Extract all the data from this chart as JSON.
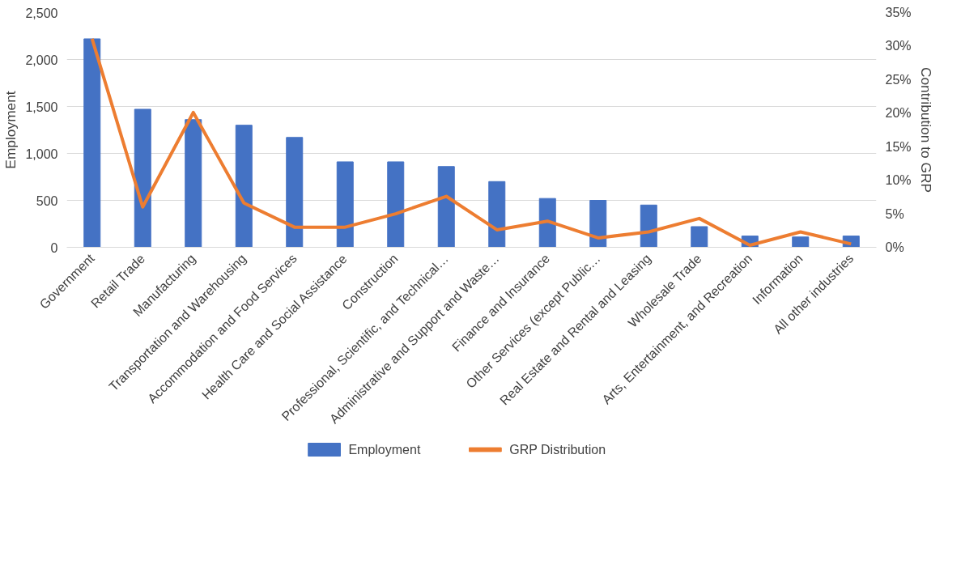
{
  "chart_data": {
    "type": "bar",
    "ylabel": "Employment",
    "y2label": "Contribution to GRP",
    "categories": [
      "Government",
      "Retail Trade",
      "Manufacturing",
      "Transportation and Warehousing",
      "Accommodation and Food Services",
      "Health Care and Social Assistance",
      "Construction",
      "Professional, Scientific, and Technical…",
      "Administrative and Support and Waste…",
      "Finance and Insurance",
      "Other Services (except Public…",
      "Real Estate and Rental and Leasing",
      "Wholesale Trade",
      "Arts, Entertainment, and Recreation",
      "Information",
      "All other industries"
    ],
    "series": [
      {
        "name": "Employment",
        "color": "#4472c4",
        "values": [
          2220,
          1470,
          1360,
          1300,
          1170,
          910,
          910,
          860,
          700,
          520,
          500,
          450,
          220,
          120,
          110,
          120
        ]
      },
      {
        "name": "GRP Distribution",
        "type": "line",
        "axis": "y2",
        "color": "#ed7d31",
        "values": [
          31.1,
          6.0,
          20.1,
          6.6,
          3.0,
          3.0,
          5.0,
          7.6,
          2.6,
          3.9,
          1.4,
          2.3,
          4.3,
          0.3,
          2.3,
          0.5
        ]
      }
    ],
    "ylim": [
      0,
      2500
    ],
    "yticks": [
      0,
      500,
      {
        "value": 1000,
        "label": "1,000"
      },
      {
        "value": 1500,
        "label": "1,500"
      },
      {
        "value": 2000,
        "label": "2,000"
      },
      {
        "value": 2500,
        "label": "2,500"
      }
    ],
    "y2lim": [
      0,
      35
    ],
    "y2ticks": [
      {
        "value": 0,
        "label": "0%"
      },
      {
        "value": 5,
        "label": "5%"
      },
      {
        "value": 10,
        "label": "10%"
      },
      {
        "value": 15,
        "label": "15%"
      },
      {
        "value": 20,
        "label": "20%"
      },
      {
        "value": 25,
        "label": "25%"
      },
      {
        "value": 30,
        "label": "30%"
      },
      {
        "value": 35,
        "label": "35%"
      }
    ],
    "grid": "y",
    "legend": "bottom",
    "marker": "none",
    "line_style": "solid"
  }
}
